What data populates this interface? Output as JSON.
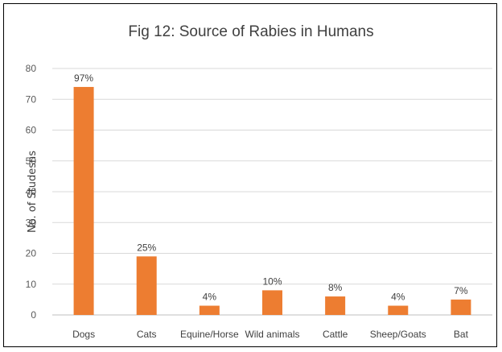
{
  "chart_data": {
    "type": "bar",
    "title": "Fig 12: Source of Rabies in Humans",
    "xlabel": "",
    "ylabel": "No. of Studesns",
    "categories": [
      "Dogs",
      "Cats",
      "Equine/Horse",
      "Wild animals",
      "Cattle",
      "Sheep/Goats",
      "Bat"
    ],
    "values": [
      74,
      19,
      3,
      8,
      6,
      3,
      5
    ],
    "data_labels": [
      "97%",
      "25%",
      "4%",
      "10%",
      "8%",
      "4%",
      "7%"
    ],
    "ylim": [
      0,
      80
    ],
    "yticks": [
      0,
      10,
      20,
      30,
      40,
      50,
      60,
      70,
      80
    ],
    "grid": true,
    "legend": "none",
    "bar_color": "#ED7D31",
    "grid_color": "#D9D9D9"
  }
}
